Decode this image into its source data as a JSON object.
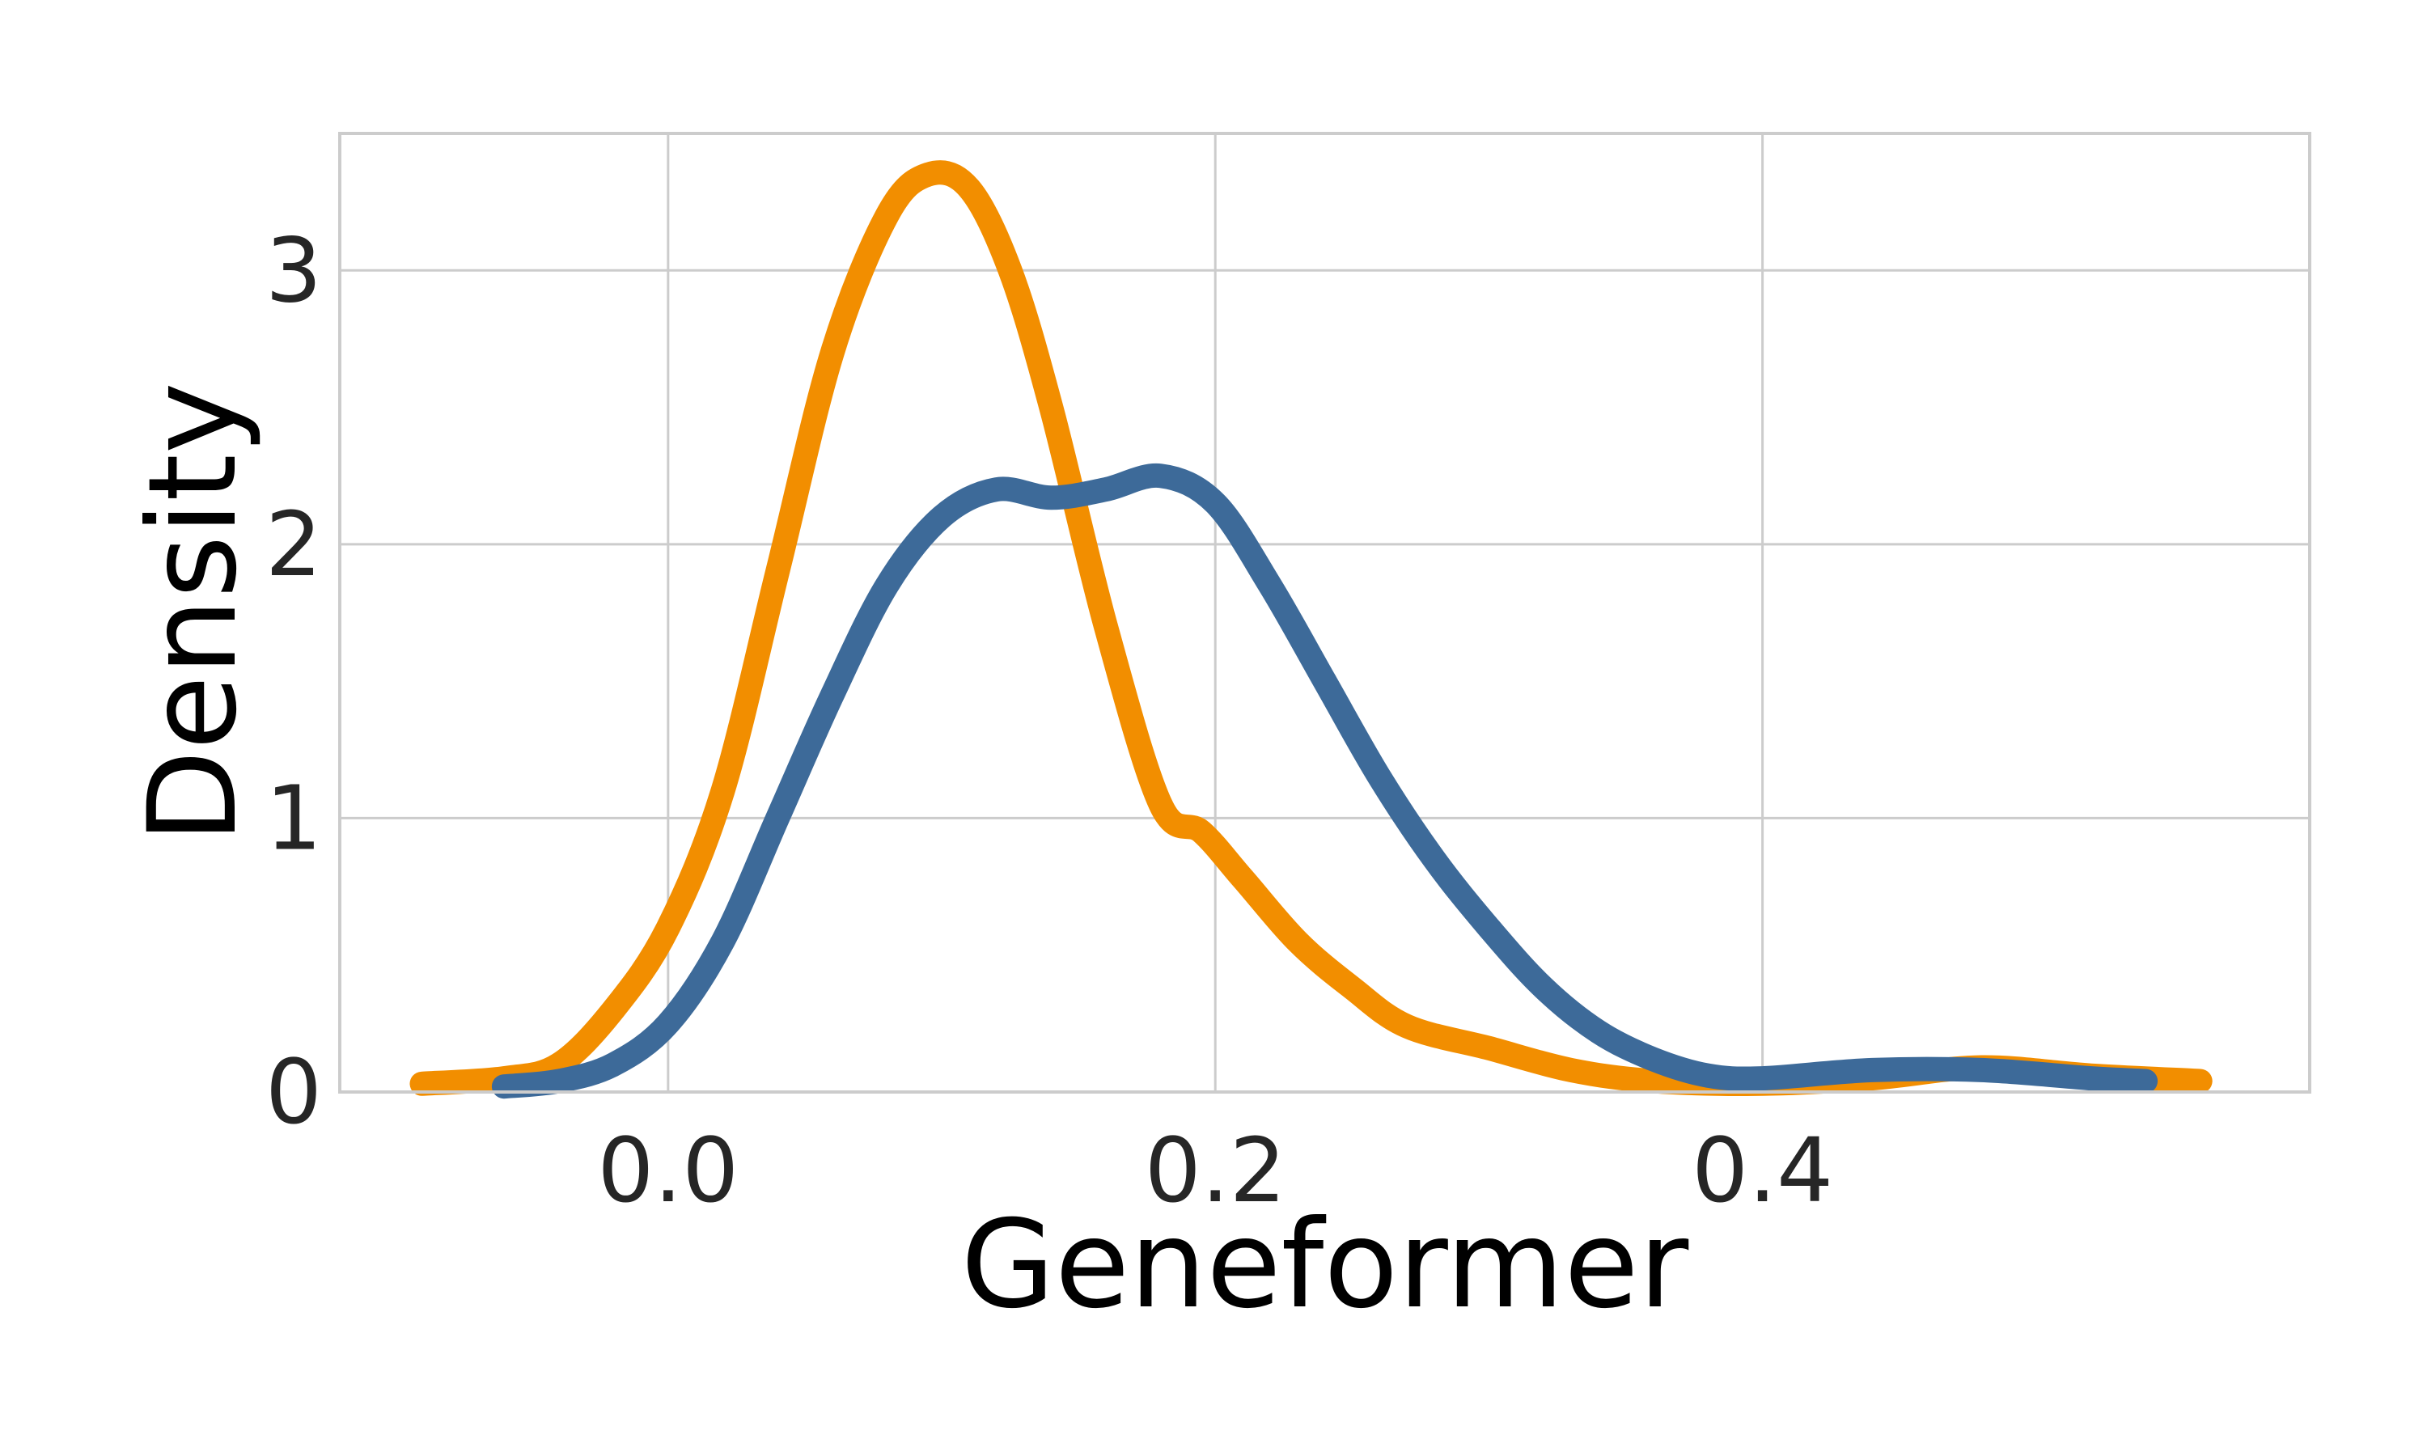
{
  "chart_data": {
    "type": "line",
    "title": "",
    "xlabel": "Geneformer",
    "ylabel": "Density",
    "xlim": [
      -0.12,
      0.6
    ],
    "ylim": [
      0,
      3.5
    ],
    "xticks": [
      0.0,
      0.2,
      0.4
    ],
    "xtick_labels": [
      "0.0",
      "0.2",
      "0.4"
    ],
    "yticks": [
      0,
      1,
      2,
      3
    ],
    "ytick_labels": [
      "0",
      "1",
      "2",
      "3"
    ],
    "grid": true,
    "legend": "none",
    "series": [
      {
        "color": "#f28e00",
        "x": [
          -0.09,
          -0.06,
          -0.04,
          -0.02,
          0.0,
          0.02,
          0.04,
          0.06,
          0.08,
          0.095,
          0.11,
          0.125,
          0.14,
          0.16,
          0.18,
          0.195,
          0.21,
          0.23,
          0.25,
          0.27,
          0.3,
          0.33,
          0.36,
          0.4,
          0.44,
          0.48,
          0.52,
          0.56
        ],
        "y": [
          0.03,
          0.05,
          0.1,
          0.3,
          0.6,
          1.1,
          1.9,
          2.7,
          3.2,
          3.35,
          3.3,
          3.0,
          2.5,
          1.7,
          1.05,
          0.95,
          0.78,
          0.55,
          0.38,
          0.24,
          0.16,
          0.08,
          0.04,
          0.03,
          0.05,
          0.09,
          0.06,
          0.04
        ]
      },
      {
        "color": "#3d6a99",
        "x": [
          -0.06,
          -0.04,
          -0.02,
          0.0,
          0.02,
          0.04,
          0.06,
          0.08,
          0.1,
          0.12,
          0.14,
          0.16,
          0.18,
          0.2,
          0.22,
          0.24,
          0.26,
          0.28,
          0.3,
          0.32,
          0.34,
          0.36,
          0.38,
          0.4,
          0.44,
          0.48,
          0.52,
          0.54
        ],
        "y": [
          0.02,
          0.04,
          0.1,
          0.25,
          0.55,
          1.0,
          1.45,
          1.85,
          2.1,
          2.2,
          2.17,
          2.2,
          2.25,
          2.15,
          1.85,
          1.5,
          1.15,
          0.85,
          0.6,
          0.38,
          0.22,
          0.12,
          0.06,
          0.05,
          0.08,
          0.08,
          0.05,
          0.04
        ]
      }
    ]
  }
}
